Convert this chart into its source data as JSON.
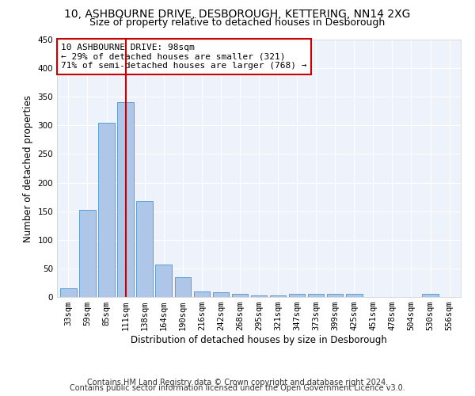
{
  "title": "10, ASHBOURNE DRIVE, DESBOROUGH, KETTERING, NN14 2XG",
  "subtitle": "Size of property relative to detached houses in Desborough",
  "xlabel": "Distribution of detached houses by size in Desborough",
  "ylabel": "Number of detached properties",
  "footnote1": "Contains HM Land Registry data © Crown copyright and database right 2024.",
  "footnote2": "Contains public sector information licensed under the Open Government Licence v3.0.",
  "bar_labels": [
    "33sqm",
    "59sqm",
    "85sqm",
    "111sqm",
    "138sqm",
    "164sqm",
    "190sqm",
    "216sqm",
    "242sqm",
    "268sqm",
    "295sqm",
    "321sqm",
    "347sqm",
    "373sqm",
    "399sqm",
    "425sqm",
    "451sqm",
    "478sqm",
    "504sqm",
    "530sqm",
    "556sqm"
  ],
  "bar_values": [
    15,
    153,
    305,
    340,
    167,
    57,
    35,
    10,
    8,
    6,
    3,
    3,
    5,
    5,
    5,
    5,
    0,
    0,
    0,
    5,
    0
  ],
  "bar_color": "#aec6e8",
  "bar_edgecolor": "#5a9fd4",
  "vline_x": 3.0,
  "vline_color": "#cc0000",
  "annotation_text": "10 ASHBOURNE DRIVE: 98sqm\n← 29% of detached houses are smaller (321)\n71% of semi-detached houses are larger (768) →",
  "annotation_box_color": "#cc0000",
  "annotation_box_facecolor": "white",
  "ylim": [
    0,
    450
  ],
  "yticks": [
    0,
    50,
    100,
    150,
    200,
    250,
    300,
    350,
    400,
    450
  ],
  "bg_color": "#eef2fa",
  "grid_color": "#ffffff",
  "title_fontsize": 10,
  "subtitle_fontsize": 9,
  "axis_label_fontsize": 8.5,
  "tick_fontsize": 7.5,
  "annotation_fontsize": 8,
  "footnote_fontsize": 7
}
